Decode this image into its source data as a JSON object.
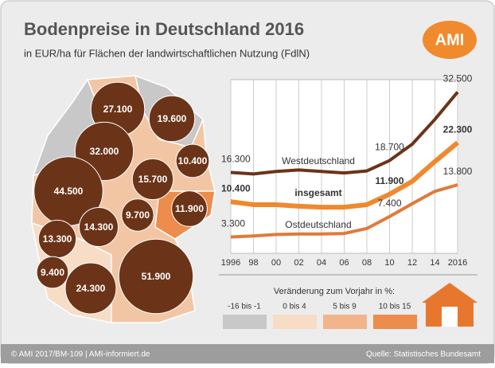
{
  "title": "Bodenpreise in Deutschland 2016",
  "subtitle": "in EUR/ha für Flächen der landwirtschaftlichen Nutzung (FdlN)",
  "logo": "AMI",
  "map": {
    "color": "#6b3418",
    "values": [
      27100,
      19600,
      32000,
      10400,
      44500,
      15700,
      11900,
      9700,
      14300,
      13300,
      9400,
      24300,
      51900
    ],
    "value_labels": [
      "27.100",
      "19.600",
      "32.000",
      "10.400",
      "44.500",
      "15.700",
      "11.900",
      "9.700",
      "14.300",
      "13.300",
      "9.400",
      "24.300",
      "51.900"
    ]
  },
  "chart_data": {
    "type": "line",
    "x": [
      1996,
      1998,
      2000,
      2002,
      2004,
      2006,
      2008,
      2010,
      2012,
      2014,
      2016
    ],
    "xlim": [
      1996,
      2016
    ],
    "xticks": [
      1996,
      {
        "value": 1998,
        "label": "98"
      },
      {
        "value": 2000,
        "label": "00"
      },
      {
        "value": 2002,
        "label": "02"
      },
      {
        "value": 2004,
        "label": "04"
      },
      {
        "value": 2006,
        "label": "06"
      },
      {
        "value": 2008,
        "label": "08"
      },
      {
        "value": 2010,
        "label": "10"
      },
      {
        "value": 2012,
        "label": "12"
      },
      {
        "value": 2014,
        "label": "14"
      },
      2016
    ],
    "ylim": [
      0,
      35000
    ],
    "grid": true,
    "series": [
      {
        "name": "Westdeutschland",
        "color": "#6b3418",
        "values": [
          16300,
          16000,
          16500,
          16800,
          16500,
          16200,
          16600,
          18700,
          22000,
          27000,
          32500
        ],
        "value_labels": [
          "16.300",
          null,
          null,
          null,
          null,
          null,
          null,
          "18.700",
          null,
          null,
          "32.500"
        ]
      },
      {
        "name": "insgesamt",
        "color": "#f0892e",
        "values": [
          10400,
          9800,
          9800,
          9500,
          9300,
          9300,
          9800,
          11900,
          14500,
          18500,
          22300
        ],
        "value_labels": [
          "10.400",
          null,
          null,
          null,
          null,
          null,
          null,
          "11.900",
          null,
          null,
          "22.300"
        ]
      },
      {
        "name": "Ostdeutschland",
        "color": "#e07a3a",
        "values": [
          3300,
          3500,
          3800,
          3900,
          3900,
          4000,
          5000,
          7400,
          10000,
          12500,
          13800
        ],
        "value_labels": [
          "3.300",
          null,
          null,
          null,
          null,
          null,
          null,
          "7.400",
          null,
          null,
          "13.800"
        ]
      }
    ]
  },
  "legend": {
    "title": "Veränderung zum Vorjahr in %:",
    "items": [
      {
        "label": "-16 bis -1",
        "color": "#c8c8c8"
      },
      {
        "label": "0 bis 4",
        "color": "#f7dcc6"
      },
      {
        "label": "5 bis 9",
        "color": "#f2b48a"
      },
      {
        "label": "10 bis 15",
        "color": "#ec8c4d"
      }
    ]
  },
  "footer": {
    "left": "© AMI 2017/BM-109 | AMI-informiert.de",
    "right": "Quelle: Statistisches Bundesamt"
  }
}
